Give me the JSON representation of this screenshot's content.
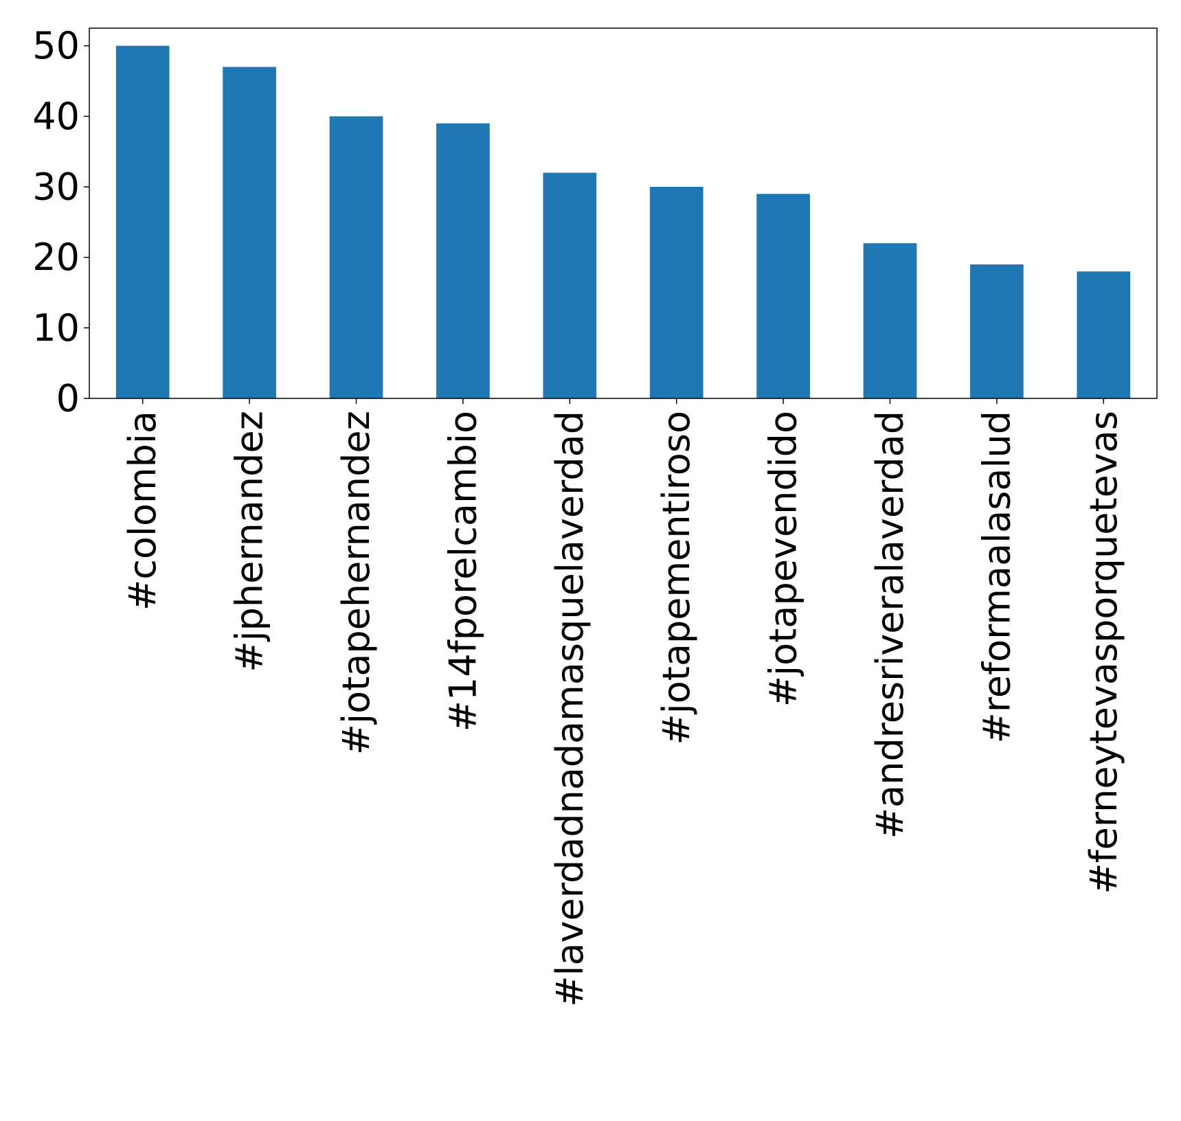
{
  "chart_data": {
    "type": "bar",
    "categories": [
      "#colombia",
      "#jphernandez",
      "#jotapehernandez",
      "#14fporelcambio",
      "#laverdadnadamasquelaverdad",
      "#jotapementiroso",
      "#jotapevendido",
      "#andresriveralaverdad",
      "#reformaalasalud",
      "#ferneytevasporquetevas"
    ],
    "values": [
      50,
      47,
      40,
      39,
      32,
      30,
      29,
      22,
      19,
      18
    ],
    "title": "",
    "xlabel": "",
    "ylabel": "",
    "ylim": [
      0,
      52.5
    ],
    "yticks": [
      0,
      10,
      20,
      30,
      40,
      50
    ],
    "grid": false,
    "bar_color": "#1f77b4"
  }
}
